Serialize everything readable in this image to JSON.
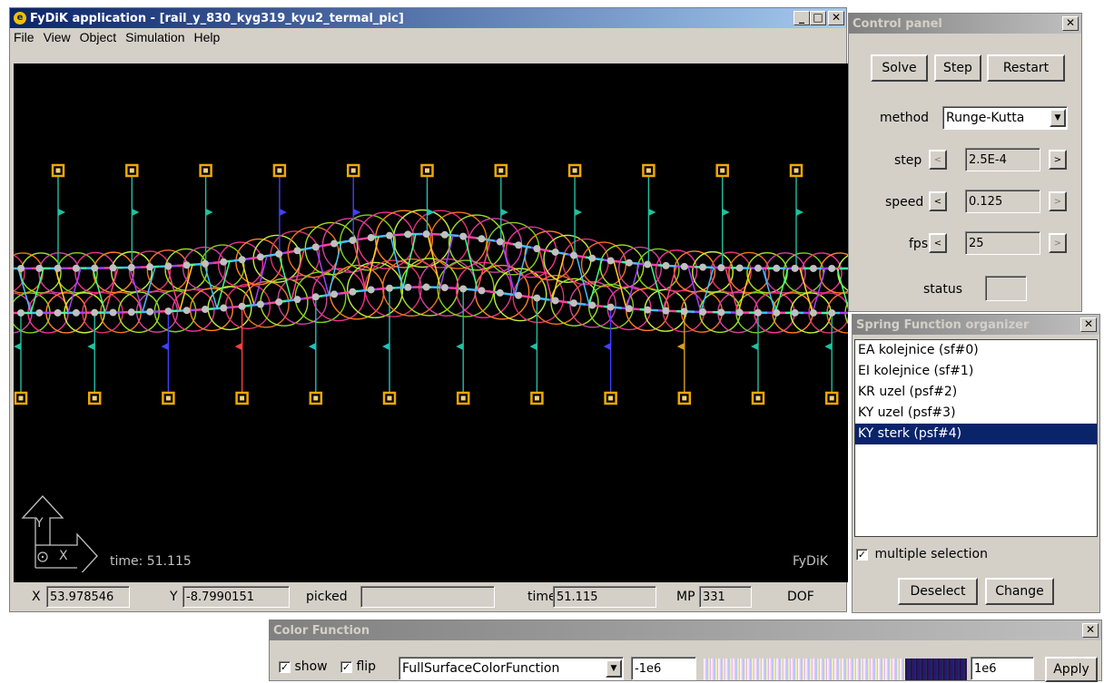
{
  "app": {
    "title": "FyDiK application - [rail_y_830_kyg319_kyu2_termal_pic]",
    "menu": [
      "File",
      "View",
      "Object",
      "Simulation",
      "Help"
    ],
    "canvas_time": "time: 51.115",
    "watermark": "FyDiK",
    "axes": {
      "y": "Y",
      "x": "X"
    }
  },
  "statusbar": {
    "x_label": "X",
    "x_value": "53.978546",
    "y_label": "Y",
    "y_value": "-8.7990151",
    "picked_label": "picked",
    "picked_value": "",
    "time_label": "time",
    "time_value": "51.115",
    "mp_label": "MP",
    "mp_value": "331",
    "dof_label": "DOF"
  },
  "control_panel": {
    "title": "Control panel",
    "solve": "Solve",
    "step_btn": "Step",
    "restart": "Restart",
    "method_label": "method",
    "method_value": "Runge-Kutta",
    "step_label": "step",
    "step_value": "2.5E-4",
    "speed_label": "speed",
    "speed_value": "0.125",
    "fps_label": "fps",
    "fps_value": "25",
    "status_label": "status",
    "dec": "<",
    "inc": ">"
  },
  "spring_organizer": {
    "title": "Spring Function organizer",
    "items": [
      {
        "label": "EA kolejnice (sf#0)",
        "selected": false
      },
      {
        "label": "EI kolejnice (sf#1)",
        "selected": false
      },
      {
        "label": "KR uzel (psf#2)",
        "selected": false
      },
      {
        "label": "KY uzel (psf#3)",
        "selected": false
      },
      {
        "label": "KY sterk (psf#4)",
        "selected": true
      }
    ],
    "multiple_selection": "multiple selection",
    "deselect": "Deselect",
    "change": "Change"
  },
  "color_function": {
    "title": "Color Function",
    "show": "show",
    "flip": "flip",
    "function": "FullSurfaceColorFunction",
    "min": "-1e6",
    "max": "1e6",
    "apply": "Apply"
  },
  "colors": {
    "title_active": "#0a246a",
    "canvas_bg": "#000000",
    "node": "#c0c0c0",
    "support": "#f0a800"
  }
}
